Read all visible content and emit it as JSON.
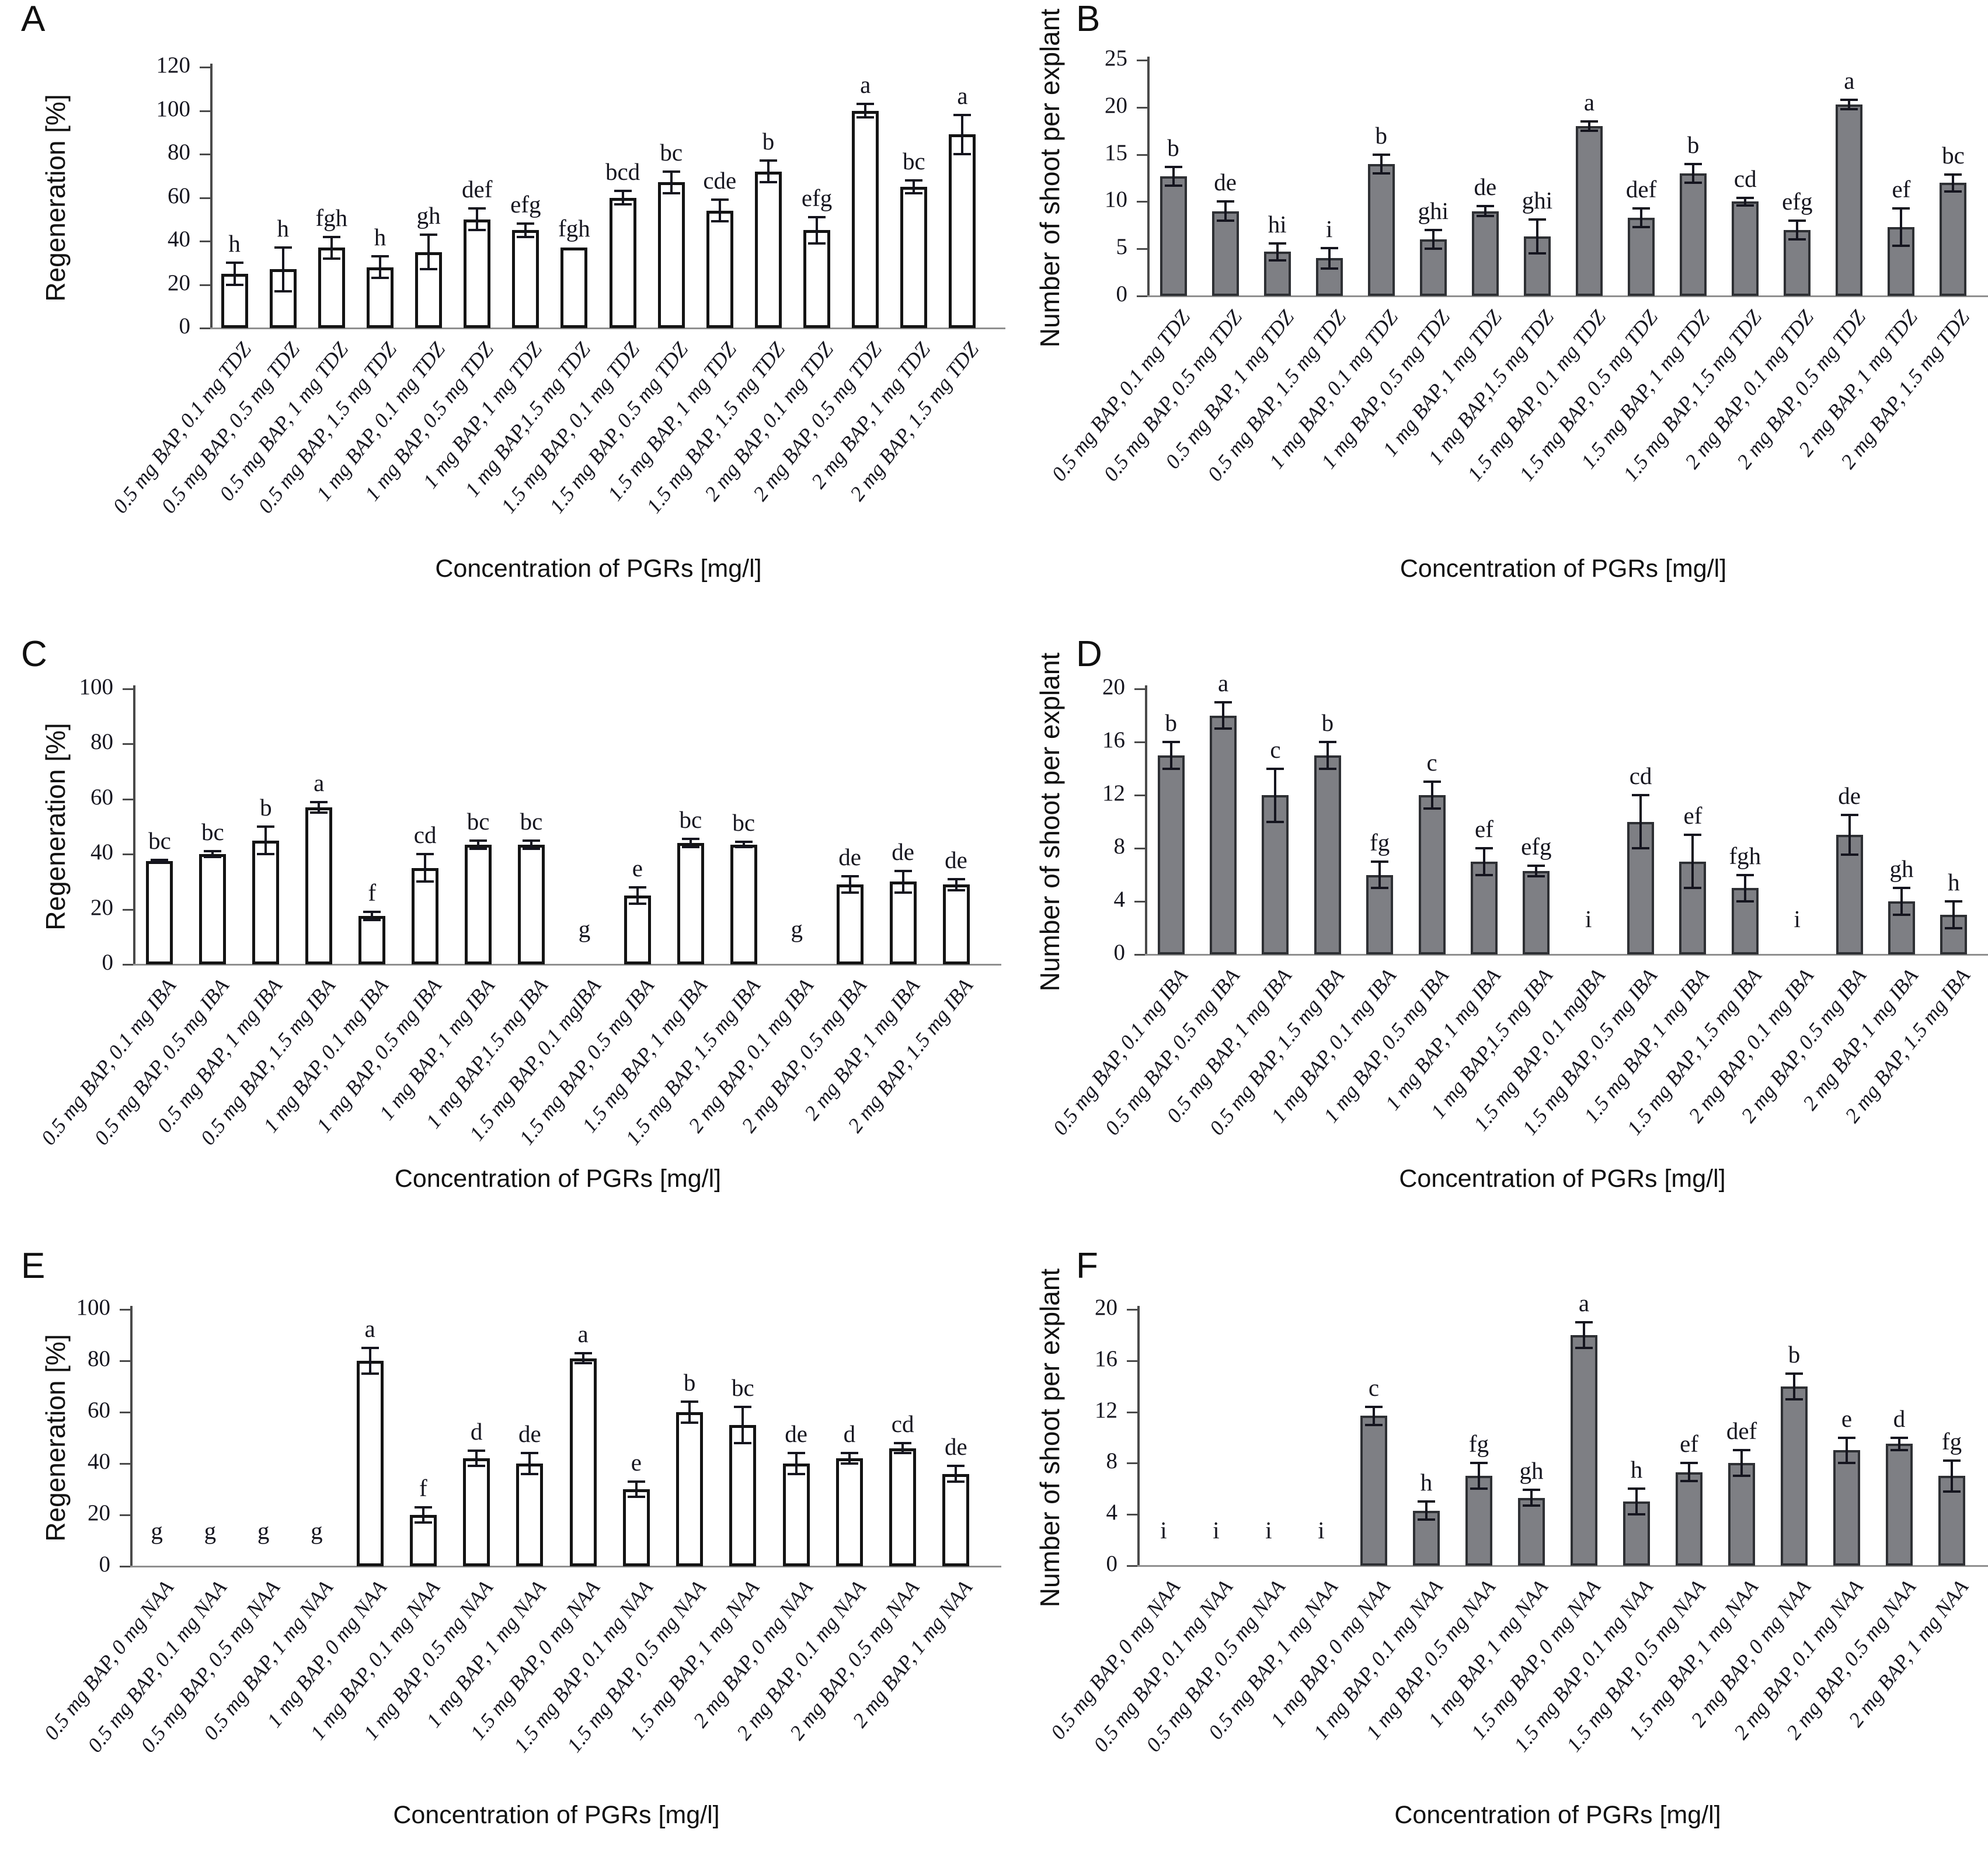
{
  "chart_data": [
    {
      "panel": "A",
      "type": "bar",
      "ylabel": "Regeneration [%]",
      "xlabel": "Concentration of PGRs [mg/l]",
      "ylim": [
        0,
        120
      ],
      "yticks": [
        0,
        20,
        40,
        60,
        80,
        100,
        120
      ],
      "grid": false,
      "legend": "none",
      "bar_fill": "#ffffff",
      "bar_border": "#141414",
      "bar_border_width": 5,
      "categories": [
        "0.5 mg BAP, 0.1 mg TDZ",
        "0.5 mg BAP, 0.5 mg TDZ",
        "0.5 mg BAP, 1 mg TDZ",
        "0.5 mg BAP, 1.5 mg TDZ",
        "1 mg BAP, 0.1 mg TDZ",
        "1 mg BAP, 0.5 mg TDZ",
        "1 mg BAP, 1 mg TDZ",
        "1 mg BAP,1.5 mg TDZ",
        "1.5 mg BAP, 0.1 mg TDZ",
        "1.5 mg BAP, 0.5 mg TDZ",
        "1.5 mg BAP, 1 mg TDZ",
        "1.5 mg BAP, 1.5 mg TDZ",
        "2 mg BAP, 0.1 mg TDZ",
        "2 mg BAP, 0.5 mg TDZ",
        "2 mg BAP, 1 mg TDZ",
        "2 mg BAP, 1.5 mg TDZ"
      ],
      "values": [
        25,
        27,
        37,
        28,
        35,
        50,
        45,
        37,
        60,
        67,
        54,
        72,
        45,
        100,
        65,
        89
      ],
      "errors": [
        5,
        10,
        5,
        5,
        8,
        5,
        3,
        0,
        3,
        5,
        5,
        5,
        6,
        3,
        3,
        9
      ],
      "letters": [
        "h",
        "h",
        "fgh",
        "h",
        "gh",
        "def",
        "efg",
        "fgh",
        "bcd",
        "bc",
        "cde",
        "b",
        "efg",
        "a",
        "bc",
        "a"
      ]
    },
    {
      "panel": "B",
      "type": "bar",
      "ylabel": "Number of shoot per explant",
      "xlabel": "Concentration of PGRs [mg/l]",
      "ylim": [
        0,
        25
      ],
      "yticks": [
        0,
        5,
        10,
        15,
        20,
        25
      ],
      "grid": false,
      "legend": "none",
      "bar_fill": "#7e7f84",
      "bar_border": "#2e3034",
      "bar_border_width": 4,
      "categories": [
        "0.5 mg BAP, 0.1 mg TDZ",
        "0.5 mg BAP, 0.5 mg TDZ",
        "0.5 mg BAP, 1 mg TDZ",
        "0.5 mg BAP, 1.5 mg TDZ",
        "1 mg BAP, 0.1 mg TDZ",
        "1 mg BAP, 0.5 mg TDZ",
        "1 mg BAP, 1 mg TDZ",
        "1 mg BAP,1.5 mg TDZ",
        "1.5 mg BAP, 0.1 mg TDZ",
        "1.5 mg BAP, 0.5 mg TDZ",
        "1.5 mg BAP, 1 mg TDZ",
        "1.5 mg BAP, 1.5 mg TDZ",
        "2 mg BAP, 0.1 mg TDZ",
        "2 mg BAP, 0.5 mg TDZ",
        "2 mg BAP, 1 mg TDZ",
        "2 mg BAP, 1.5 mg TDZ"
      ],
      "values": [
        12.7,
        9,
        4.7,
        4,
        14,
        6,
        9,
        6.3,
        18,
        8.3,
        13,
        10,
        7,
        20.3,
        7.3,
        12
      ],
      "errors": [
        1,
        1,
        0.9,
        1.1,
        1,
        1,
        0.5,
        1.8,
        0.5,
        1,
        1,
        0.4,
        1,
        0.5,
        2,
        0.9
      ],
      "letters": [
        "b",
        "de",
        "hi",
        "i",
        "b",
        "ghi",
        "de",
        "ghi",
        "a",
        "def",
        "b",
        "cd",
        "efg",
        "a",
        "ef",
        "bc"
      ]
    },
    {
      "panel": "C",
      "type": "bar",
      "ylabel": "Regeneration [%]",
      "xlabel": "Concentration of PGRs [mg/l]",
      "ylim": [
        0,
        100
      ],
      "yticks": [
        0,
        20,
        40,
        60,
        80,
        100
      ],
      "grid": false,
      "legend": "none",
      "bar_fill": "#ffffff",
      "bar_border": "#141414",
      "bar_border_width": 5,
      "categories": [
        "0.5 mg BAP, 0.1 mg IBA",
        "0.5 mg BAP, 0.5 mg IBA",
        "0.5 mg BAP, 1 mg IBA",
        "0.5 mg BAP, 1.5 mg IBA",
        "1 mg BAP, 0.1 mg IBA",
        "1 mg BAP, 0.5 mg IBA",
        "1 mg BAP, 1 mg IBA",
        "1 mg BAP,1.5 mg IBA",
        "1.5 mg BAP, 0.1 mgIBA",
        "1.5 mg BAP, 0.5 mg IBA",
        "1.5 mg BAP, 1 mg IBA",
        "1.5 mg BAP, 1.5 mg IBA",
        "2 mg BAP, 0.1 mg IBA",
        "2 mg BAP, 0.5 mg IBA",
        "2 mg BAP, 1 mg IBA",
        "2 mg BAP, 1.5 mg IBA"
      ],
      "values": [
        37.5,
        40,
        45,
        57,
        17.5,
        35,
        43.5,
        43.5,
        0,
        25,
        44,
        43.5,
        0,
        29,
        30,
        29
      ],
      "errors": [
        0.5,
        1,
        5,
        2,
        1.5,
        5,
        1.5,
        1.5,
        0,
        3,
        1.5,
        1,
        0,
        3,
        4,
        2
      ],
      "letters": [
        "bc",
        "bc",
        "b",
        "a",
        "f",
        "cd",
        "bc",
        "bc",
        "g",
        "e",
        "bc",
        "bc",
        "g",
        "de",
        "de",
        "de"
      ]
    },
    {
      "panel": "D",
      "type": "bar",
      "ylabel": "Number of shoot per explant",
      "xlabel": "Concentration of PGRs [mg/l]",
      "ylim": [
        0,
        20
      ],
      "yticks": [
        0,
        4,
        8,
        12,
        16,
        20
      ],
      "grid": false,
      "legend": "none",
      "bar_fill": "#7e7f84",
      "bar_border": "#2e3034",
      "bar_border_width": 4,
      "categories": [
        "0.5 mg BAP, 0.1 mg IBA",
        "0.5 mg BAP, 0.5 mg IBA",
        "0.5 mg BAP, 1 mg IBA",
        "0.5 mg BAP, 1.5 mg IBA",
        "1 mg BAP, 0.1 mg IBA",
        "1 mg BAP, 0.5 mg IBA",
        "1 mg BAP, 1 mg IBA",
        "1 mg BAP,1.5 mg IBA",
        "1.5 mg BAP, 0.1 mgIBA",
        "1.5 mg BAP, 0.5 mg IBA",
        "1.5 mg BAP, 1 mg IBA",
        "1.5 mg BAP, 1.5 mg IBA",
        "2 mg BAP, 0.1 mg IBA",
        "2 mg BAP, 0.5 mg IBA",
        "2 mg BAP, 1 mg IBA",
        "2 mg BAP, 1.5 mg IBA"
      ],
      "values": [
        15,
        18,
        12,
        15,
        6,
        12,
        7,
        6.3,
        0,
        10,
        7,
        5,
        0,
        9,
        4,
        3
      ],
      "errors": [
        1,
        1,
        2,
        1,
        1,
        1,
        1,
        0.4,
        0,
        2,
        2,
        1,
        0,
        1.5,
        1,
        1
      ],
      "letters": [
        "b",
        "a",
        "c",
        "b",
        "fg",
        "c",
        "ef",
        "efg",
        "i",
        "cd",
        "ef",
        "fgh",
        "i",
        "de",
        "gh",
        "h"
      ]
    },
    {
      "panel": "E",
      "type": "bar",
      "ylabel": "Regeneration [%]",
      "xlabel": "Concentration of PGRs [mg/l]",
      "ylim": [
        0,
        100
      ],
      "yticks": [
        0,
        20,
        40,
        60,
        80,
        100
      ],
      "grid": false,
      "legend": "none",
      "bar_fill": "#ffffff",
      "bar_border": "#141414",
      "bar_border_width": 5,
      "categories": [
        "0.5 mg BAP, 0 mg NAA",
        "0.5 mg BAP, 0.1 mg NAA",
        "0.5 mg BAP, 0.5 mg NAA",
        "0.5 mg BAP, 1 mg NAA",
        "1 mg BAP, 0 mg NAA",
        "1 mg BAP, 0.1 mg NAA",
        "1 mg BAP, 0.5 mg NAA",
        "1 mg BAP, 1 mg NAA",
        "1.5 mg BAP, 0 mg NAA",
        "1.5 mg BAP, 0.1 mg NAA",
        "1.5 mg BAP, 0.5 mg NAA",
        "1.5 mg BAP, 1 mg NAA",
        "2 mg BAP, 0 mg NAA",
        "2 mg BAP, 0.1 mg NAA",
        "2 mg BAP, 0.5 mg NAA",
        "2 mg BAP, 1 mg NAA"
      ],
      "values": [
        0,
        0,
        0,
        0,
        80,
        20,
        42,
        40,
        81,
        30,
        60,
        55,
        40,
        42,
        46,
        36
      ],
      "errors": [
        0,
        0,
        0,
        0,
        5,
        3,
        3,
        4,
        2,
        3,
        4,
        7,
        4,
        2,
        2,
        3
      ],
      "letters": [
        "g",
        "g",
        "g",
        "g",
        "a",
        "f",
        "d",
        "de",
        "a",
        "e",
        "b",
        "bc",
        "de",
        "d",
        "cd",
        "de"
      ]
    },
    {
      "panel": "F",
      "type": "bar",
      "ylabel": "Number of shoot per explant",
      "xlabel": "Concentration of PGRs [mg/l]",
      "ylim": [
        0,
        20
      ],
      "yticks": [
        0,
        4,
        8,
        12,
        16,
        20
      ],
      "grid": false,
      "legend": "none",
      "bar_fill": "#7e7f84",
      "bar_border": "#2e3034",
      "bar_border_width": 4,
      "categories": [
        "0.5 mg BAP, 0 mg NAA",
        "0.5 mg BAP, 0.1 mg NAA",
        "0.5 mg BAP, 0.5 mg NAA",
        "0.5 mg BAP, 1 mg NAA",
        "1 mg BAP, 0 mg NAA",
        "1 mg BAP, 0.1 mg NAA",
        "1 mg BAP, 0.5 mg NAA",
        "1 mg BAP, 1 mg NAA",
        "1.5 mg BAP, 0 mg NAA",
        "1.5 mg BAP, 0.1 mg NAA",
        "1.5 mg BAP, 0.5 mg NAA",
        "1.5 mg BAP, 1 mg NAA",
        "2 mg BAP, 0 mg NAA",
        "2 mg BAP, 0.1 mg NAA",
        "2 mg BAP, 0.5 mg NAA",
        "2 mg BAP, 1 mg NAA"
      ],
      "values": [
        0,
        0,
        0,
        0,
        11.7,
        4.3,
        7,
        5.3,
        18,
        5,
        7.3,
        8,
        14,
        9,
        9.5,
        7
      ],
      "errors": [
        0,
        0,
        0,
        0,
        0.7,
        0.7,
        1,
        0.6,
        1,
        1,
        0.7,
        1,
        1,
        1,
        0.5,
        1.2
      ],
      "letters": [
        "i",
        "i",
        "i",
        "i",
        "c",
        "h",
        "fg",
        "gh",
        "a",
        "h",
        "ef",
        "def",
        "b",
        "e",
        "d",
        "fg"
      ]
    }
  ]
}
